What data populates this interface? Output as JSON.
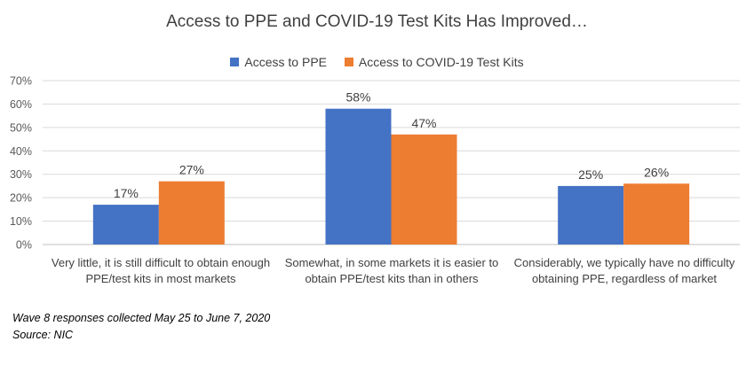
{
  "chart_data": {
    "type": "bar",
    "title": "Access to PPE and COVID-19 Test Kits Has Improved…",
    "categories": [
      "Very little, it is still difficult to obtain enough PPE/test kits in most markets",
      "Somewhat, in some markets it is easier to obtain PPE/test kits than in others",
      "Considerably, we typically have no difficulty obtaining PPE, regardless of market"
    ],
    "series": [
      {
        "name": "Access to PPE",
        "color": "#4472C4",
        "values": [
          17,
          58,
          25
        ],
        "labels": [
          "17%",
          "58%",
          "25%"
        ]
      },
      {
        "name": "Access to COVID-19 Test Kits",
        "color": "#ED7D31",
        "values": [
          27,
          47,
          26
        ],
        "labels": [
          "27%",
          "47%",
          "26%"
        ]
      }
    ],
    "y_ticks": [
      "0%",
      "10%",
      "20%",
      "30%",
      "40%",
      "50%",
      "60%",
      "70%"
    ],
    "ylim": [
      0,
      70
    ],
    "grid": true,
    "legend_position": "top"
  },
  "footnotes": {
    "line1": "Wave 8 responses collected May 25 to June 7, 2020",
    "line2": "Source: NIC"
  }
}
